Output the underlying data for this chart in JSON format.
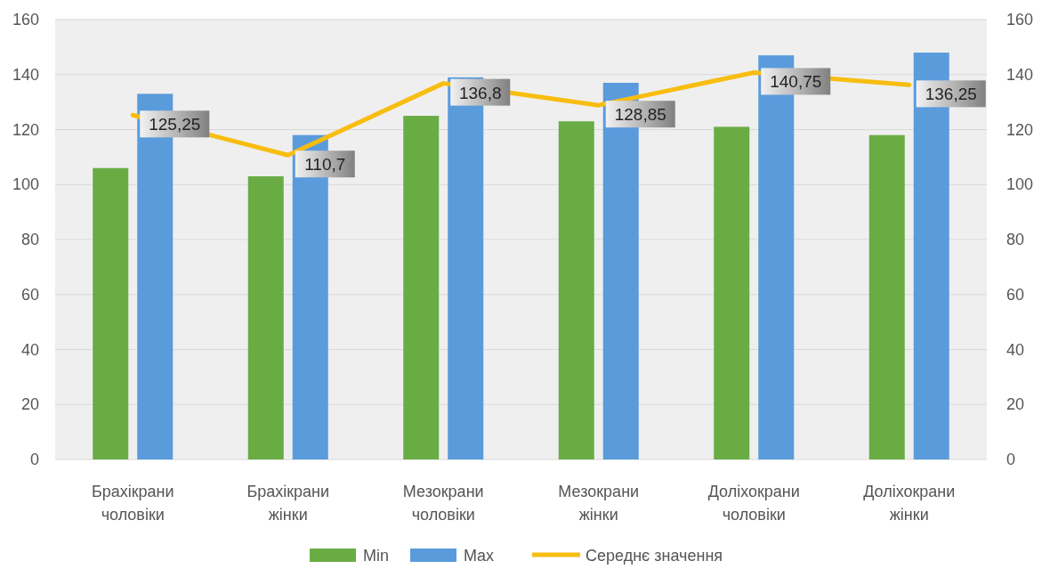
{
  "chart_data": {
    "type": "bar",
    "categories": [
      "Брахікрани чоловіки",
      "Брахікрани жінки",
      "Мезокрани чоловіки",
      "Мезокрани жінки",
      "Доліхокрани чоловіки",
      "Доліхокрани жінки"
    ],
    "series": [
      {
        "name": "Min",
        "color": "#6aac44",
        "values": [
          106,
          103,
          125,
          123,
          121,
          118
        ]
      },
      {
        "name": "Max",
        "color": "#5a9bdc",
        "values": [
          133,
          118,
          139,
          137,
          147,
          148
        ]
      },
      {
        "name": "Середнє значення",
        "type": "line",
        "color": "#f7bd10",
        "values": [
          125.25,
          110.7,
          136.8,
          128.85,
          140.75,
          136.25
        ],
        "value_labels": [
          "125,25",
          "110,7",
          "136,8",
          "128,85",
          "140,75",
          "136,25"
        ]
      }
    ],
    "ylim": [
      0,
      160
    ],
    "yticks": [
      0,
      20,
      40,
      60,
      80,
      100,
      120,
      140,
      160
    ],
    "y2lim": [
      0,
      160
    ],
    "y2ticks": [
      0,
      20,
      40,
      60,
      80,
      100,
      120,
      140,
      160
    ],
    "grid": "y",
    "legend": "bottom",
    "marker": "none",
    "line_style": "solid"
  }
}
